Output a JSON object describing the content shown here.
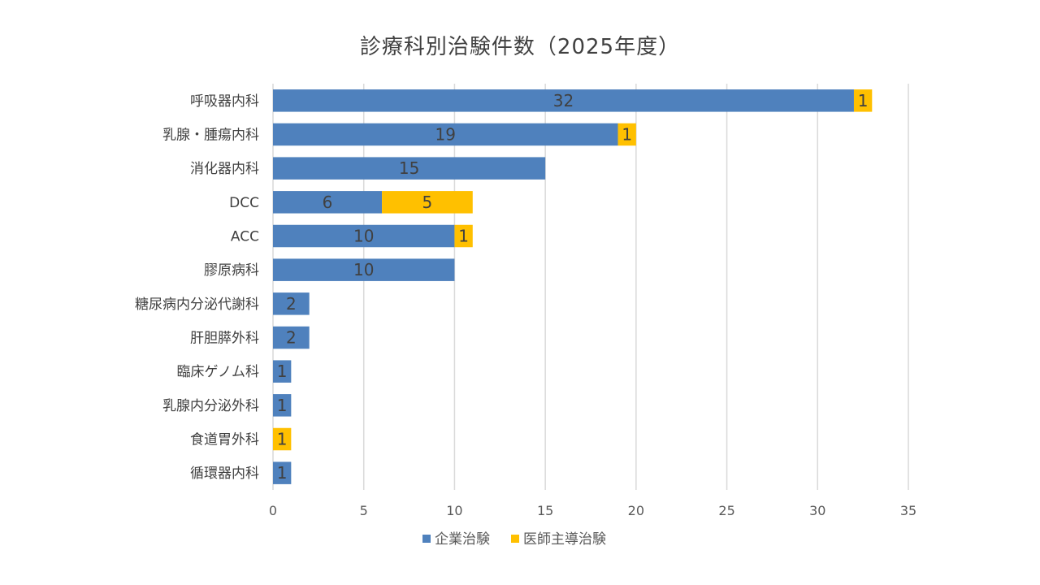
{
  "chart_data": {
    "type": "bar",
    "orientation": "horizontal",
    "stacked": true,
    "title": "診療科別治験件数（2025年度）",
    "categories": [
      "呼吸器内科",
      "乳腺・腫瘍内科",
      "消化器内科",
      "DCC",
      "ACC",
      "膠原病科",
      "糖尿病内分泌代謝科",
      "肝胆膵外科",
      "臨床ゲノム科",
      "乳腺内分泌外科",
      "食道胃外科",
      "循環器内科"
    ],
    "series": [
      {
        "name": "企業治験",
        "color": "#4F81BD",
        "values": [
          32,
          19,
          15,
          6,
          10,
          10,
          2,
          2,
          1,
          1,
          0,
          1
        ]
      },
      {
        "name": "医師主導治験",
        "color": "#FFC000",
        "values": [
          1,
          1,
          0,
          5,
          1,
          0,
          0,
          0,
          0,
          0,
          1,
          0
        ]
      }
    ],
    "xlim": [
      0,
      35
    ],
    "xticks": [
      0,
      5,
      10,
      15,
      20,
      25,
      30,
      35
    ],
    "xlabel": "",
    "ylabel": "",
    "grid": "vertical",
    "legend": "bottom",
    "data_labels": true
  }
}
